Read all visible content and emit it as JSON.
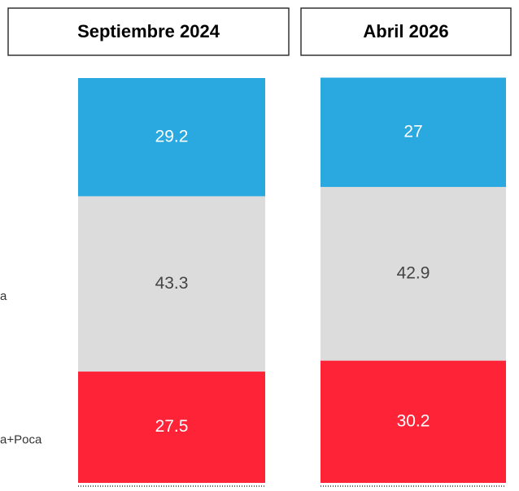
{
  "chart_data": {
    "type": "stacked_bar",
    "categories": [
      "Septiembre 2024",
      "Abril 2026"
    ],
    "series": [
      {
        "name": "a+Poca",
        "color": "#ff2337",
        "values": [
          27.5,
          30.2
        ]
      },
      {
        "name": "a",
        "color": "#dcdcdc",
        "values": [
          43.3,
          42.9
        ]
      },
      {
        "color": "#29a9e0",
        "values": [
          29.2,
          27
        ]
      }
    ],
    "ylim": [
      0,
      100
    ]
  }
}
